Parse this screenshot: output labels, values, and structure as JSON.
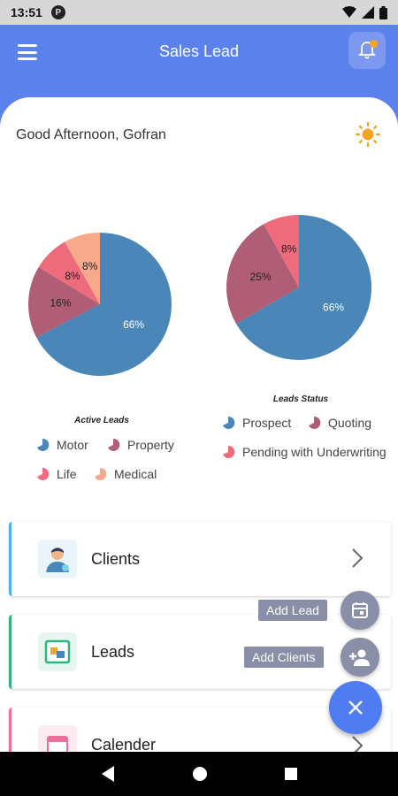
{
  "status_bar": {
    "time": "13:51",
    "badge": "P"
  },
  "app_bar": {
    "title": "Sales Lead"
  },
  "greeting": "Good Afternoon, Gofran",
  "colors": {
    "primary": "#5b82ec",
    "fab": "#4f7cf0",
    "fab_mini": "#8a8fa8"
  },
  "chart_data": [
    {
      "type": "pie",
      "title": "Active Leads",
      "slices": [
        {
          "name": "Motor",
          "value": 66,
          "label": "66%",
          "color": "#4b86b9"
        },
        {
          "name": "Property",
          "value": 16,
          "label": "16%",
          "color": "#b05d76"
        },
        {
          "name": "Life",
          "value": 8,
          "label": "8%",
          "color": "#ee6b7c"
        },
        {
          "name": "Medical",
          "value": 8,
          "label": "8%",
          "color": "#f6a98b"
        }
      ]
    },
    {
      "type": "pie",
      "title": "Leads Status",
      "slices": [
        {
          "name": "Prospect",
          "value": 66,
          "label": "66%",
          "color": "#4b86b9"
        },
        {
          "name": "Quoting",
          "value": 25,
          "label": "25%",
          "color": "#b05d76"
        },
        {
          "name": "Pending with Underwriting",
          "value": 8,
          "label": "8%",
          "color": "#ee6b7c"
        }
      ]
    }
  ],
  "cards": [
    {
      "label": "Clients",
      "icon": "client-icon",
      "accent": "#49b6e6"
    },
    {
      "label": "Leads",
      "icon": "leads-icon",
      "accent": "#2bb57a"
    },
    {
      "label": "Calender",
      "icon": "calendar-icon",
      "accent": "#e8709b"
    }
  ],
  "fab": {
    "add_lead_label": "Add Lead",
    "add_clients_label": "Add Clients"
  }
}
